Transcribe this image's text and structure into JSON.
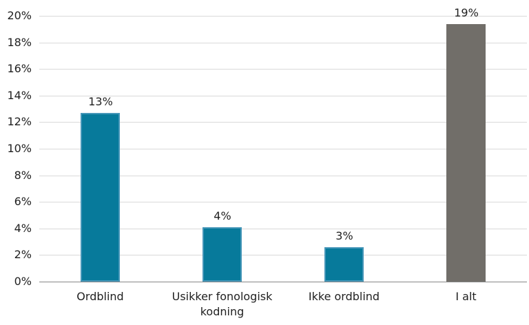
{
  "chart_data": {
    "type": "bar",
    "title": "",
    "xlabel": "",
    "ylabel": "",
    "categories": [
      "Ordblind",
      "Usikker fonologisk kodning",
      "Ikke ordblind",
      "I alt"
    ],
    "values": [
      12.7,
      4.1,
      2.6,
      19.4
    ],
    "value_labels": [
      "13%",
      "4%",
      "3%",
      "19%"
    ],
    "bar_fill_colors": [
      "#077a9b",
      "#077a9b",
      "#077a9b",
      "#716e69"
    ],
    "bar_border_colors": [
      "#4596b8",
      "#4596b8",
      "#4596b8",
      "#716e69"
    ],
    "ylim": [
      0,
      20
    ],
    "ytick_step": 2,
    "ytick_labels": [
      "0%",
      "2%",
      "4%",
      "6%",
      "8%",
      "10%",
      "12%",
      "14%",
      "16%",
      "18%",
      "20%"
    ],
    "grid": "horizontal",
    "legend": "none"
  },
  "styles": {
    "background_color": "#ffffff",
    "gridline_color": "#d9d9d9",
    "axis_line_color": "#868686",
    "text_color": "#1f1f1f"
  }
}
